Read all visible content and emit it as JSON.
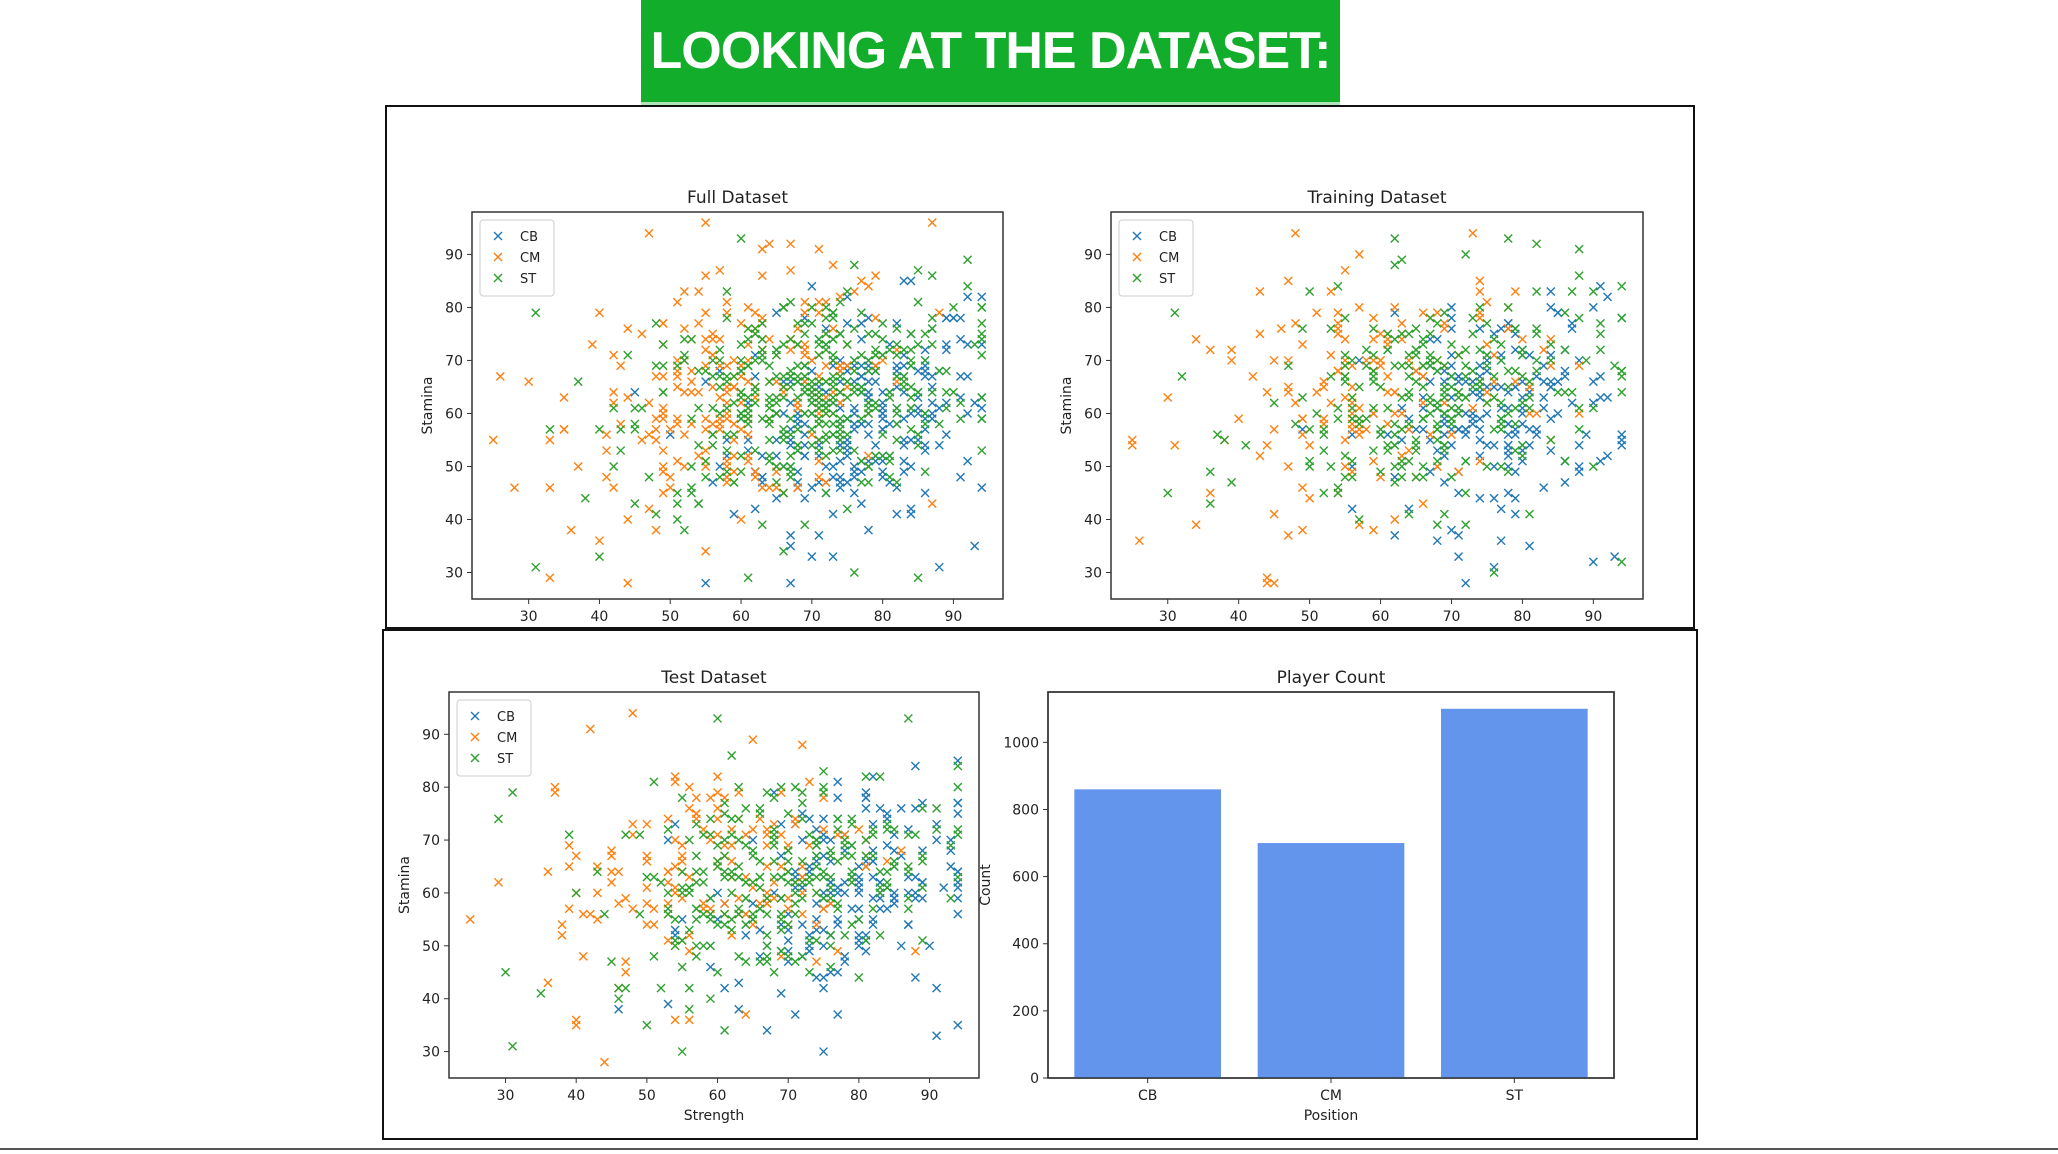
{
  "slide": {
    "title": "LOOKING AT THE DATASET:"
  },
  "colors": {
    "CB": "#1f77b4",
    "CM": "#ff7f0e",
    "ST": "#2ca02c",
    "bar": "#6495ed"
  },
  "chart_data": [
    {
      "type": "scatter",
      "title": "Full Dataset",
      "xlabel": "",
      "ylabel": "Stamina",
      "xlim": [
        22,
        97
      ],
      "ylim": [
        25,
        98
      ],
      "xticks": [
        30,
        40,
        50,
        60,
        70,
        80,
        90
      ],
      "yticks": [
        30,
        40,
        50,
        60,
        70,
        80,
        90
      ],
      "legend": "top-left",
      "marker": "x",
      "series": [
        {
          "name": "CB",
          "approx_count": 860,
          "center": [
            76,
            60
          ],
          "spread": [
            9,
            10
          ],
          "x_range": [
            40,
            94
          ],
          "y_range": [
            28,
            90
          ],
          "samples": [
            [
              55,
              28
            ],
            [
              93,
              35
            ],
            [
              88,
              31
            ],
            [
              70,
              33
            ],
            [
              84,
              42
            ],
            [
              92,
              82
            ],
            [
              62,
              49
            ],
            [
              78,
              38
            ]
          ]
        },
        {
          "name": "CM",
          "approx_count": 700,
          "center": [
            60,
            64
          ],
          "spread": [
            12,
            11
          ],
          "x_range": [
            25,
            88
          ],
          "y_range": [
            28,
            96
          ],
          "samples": [
            [
              25,
              55
            ],
            [
              30,
              66
            ],
            [
              44,
              28
            ],
            [
              47,
              94
            ],
            [
              87,
              96
            ],
            [
              40,
              79
            ],
            [
              35,
              63
            ],
            [
              58,
              48
            ]
          ]
        },
        {
          "name": "ST",
          "approx_count": 1100,
          "center": [
            68,
            63
          ],
          "spread": [
            12,
            10
          ],
          "x_range": [
            29,
            94
          ],
          "y_range": [
            29,
            93
          ],
          "samples": [
            [
              31,
              79
            ],
            [
              31,
              31
            ],
            [
              40,
              33
            ],
            [
              94,
              59
            ],
            [
              92,
              84
            ],
            [
              76,
              30
            ],
            [
              60,
              93
            ],
            [
              85,
              29
            ]
          ]
        }
      ]
    },
    {
      "type": "scatter",
      "title": "Training Dataset",
      "xlabel": "",
      "ylabel": "Stamina",
      "xlim": [
        22,
        97
      ],
      "ylim": [
        25,
        98
      ],
      "xticks": [
        30,
        40,
        50,
        60,
        70,
        80,
        90
      ],
      "yticks": [
        30,
        40,
        50,
        60,
        70,
        80,
        90
      ],
      "legend": "top-left",
      "marker": "x",
      "series": [
        {
          "name": "CB",
          "approx_count": 600,
          "center": [
            76,
            60
          ],
          "spread": [
            9,
            10
          ],
          "x_range": [
            40,
            94
          ],
          "y_range": [
            28,
            90
          ],
          "samples": [
            [
              93,
              33
            ],
            [
              90,
              32
            ],
            [
              76,
              31
            ],
            [
              88,
              50
            ],
            [
              92,
              82
            ],
            [
              68,
              36
            ]
          ]
        },
        {
          "name": "CM",
          "approx_count": 490,
          "center": [
            60,
            64
          ],
          "spread": [
            12,
            11
          ],
          "x_range": [
            25,
            88
          ],
          "y_range": [
            28,
            94
          ],
          "samples": [
            [
              25,
              55
            ],
            [
              44,
              28
            ],
            [
              48,
              94
            ],
            [
              34,
              74
            ],
            [
              30,
              63
            ],
            [
              73,
              94
            ]
          ]
        },
        {
          "name": "ST",
          "approx_count": 770,
          "center": [
            68,
            63
          ],
          "spread": [
            12,
            10
          ],
          "x_range": [
            29,
            94
          ],
          "y_range": [
            29,
            93
          ],
          "samples": [
            [
              31,
              79
            ],
            [
              30,
              45
            ],
            [
              94,
              32
            ],
            [
              62,
              93
            ],
            [
              76,
              30
            ],
            [
              94,
              84
            ]
          ]
        }
      ]
    },
    {
      "type": "scatter",
      "title": "Test Dataset",
      "xlabel": "Strength",
      "ylabel": "Stamina",
      "xlim": [
        22,
        97
      ],
      "ylim": [
        25,
        98
      ],
      "xticks": [
        30,
        40,
        50,
        60,
        70,
        80,
        90
      ],
      "yticks": [
        30,
        40,
        50,
        60,
        70,
        80,
        90
      ],
      "legend": "top-left",
      "marker": "x",
      "series": [
        {
          "name": "CB",
          "approx_count": 600,
          "center": [
            76,
            60
          ],
          "spread": [
            9,
            10
          ],
          "x_range": [
            40,
            94
          ],
          "y_range": [
            28,
            90
          ],
          "samples": [
            [
              94,
              35
            ],
            [
              75,
              30
            ],
            [
              91,
              33
            ],
            [
              86,
              50
            ],
            [
              67,
              34
            ]
          ]
        },
        {
          "name": "CM",
          "approx_count": 490,
          "center": [
            60,
            64
          ],
          "spread": [
            12,
            11
          ],
          "x_range": [
            25,
            88
          ],
          "y_range": [
            28,
            94
          ],
          "samples": [
            [
              25,
              55
            ],
            [
              44,
              28
            ],
            [
              48,
              94
            ],
            [
              42,
              91
            ],
            [
              37,
              79
            ]
          ]
        },
        {
          "name": "ST",
          "approx_count": 770,
          "center": [
            68,
            63
          ],
          "spread": [
            12,
            10
          ],
          "x_range": [
            29,
            94
          ],
          "y_range": [
            29,
            93
          ],
          "samples": [
            [
              31,
              79
            ],
            [
              31,
              31
            ],
            [
              30,
              45
            ],
            [
              94,
              84
            ],
            [
              60,
              93
            ]
          ]
        }
      ]
    },
    {
      "type": "bar",
      "title": "Player Count",
      "xlabel": "Position",
      "ylabel": "Count",
      "categories": [
        "CB",
        "CM",
        "ST"
      ],
      "values": [
        860,
        700,
        1100
      ],
      "ylim": [
        0,
        1150
      ],
      "yticks": [
        0,
        200,
        400,
        600,
        800,
        1000
      ]
    }
  ]
}
